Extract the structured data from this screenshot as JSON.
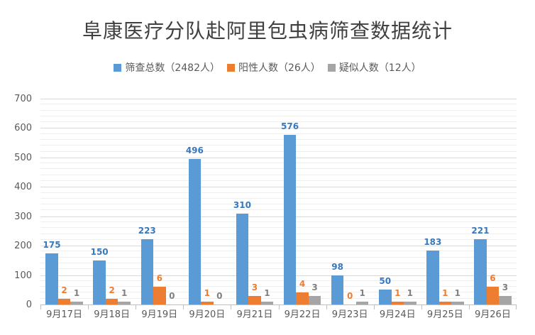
{
  "title": "阜康医疗分队赴阿里包虫病筛查数据统计",
  "colors": {
    "series_blue": "#5B9BD5",
    "series_orange": "#ED7D31",
    "series_gray": "#A5A5A5",
    "label_blue": "#3778BF",
    "label_orange": "#ED7D31",
    "label_gray": "#808080",
    "axis_text": "#595959",
    "title_text": "#404040",
    "grid_major": "#D9D9D9",
    "grid_minor": "#EFEFEF",
    "axis_line": "#BFBFBF"
  },
  "legend": [
    {
      "key": "screened_total",
      "label": "筛查总数（2482人）",
      "color": "#5B9BD5"
    },
    {
      "key": "positive",
      "label": "阳性人数（26人）",
      "color": "#ED7D31"
    },
    {
      "key": "suspected",
      "label": "疑似人数（12人）",
      "color": "#A5A5A5"
    }
  ],
  "chart_data": {
    "type": "bar",
    "title": "阜康医疗分队赴阿里包虫病筛查数据统计",
    "categories": [
      "9月17日",
      "9月18日",
      "9月19日",
      "9月20日",
      "9月21日",
      "9月22日",
      "9月23日",
      "9月24日",
      "9月25日",
      "9月26日"
    ],
    "series": [
      {
        "key": "screened_total",
        "name": "筛查总数（2482人）",
        "color": "#5B9BD5",
        "label_color": "#3778BF",
        "axis": "primary",
        "values": [
          175,
          150,
          223,
          496,
          310,
          576,
          98,
          50,
          183,
          221
        ]
      },
      {
        "key": "positive",
        "name": "阳性人数（26人）",
        "color": "#ED7D31",
        "label_color": "#ED7D31",
        "axis": "secondary",
        "values": [
          2,
          2,
          6,
          1,
          3,
          4,
          0,
          1,
          1,
          6
        ]
      },
      {
        "key": "suspected",
        "name": "疑似人数（12人）",
        "color": "#A5A5A5",
        "label_color": "#808080",
        "axis": "secondary",
        "values": [
          1,
          1,
          0,
          0,
          1,
          3,
          1,
          1,
          1,
          3
        ]
      }
    ],
    "xlabel": "",
    "ylabel": "",
    "ylim": [
      0,
      700
    ],
    "y_major_step": 100,
    "y_minor_step": 20,
    "y_tick_labels": [
      "0",
      "100",
      "200",
      "300",
      "400",
      "500",
      "600",
      "700"
    ],
    "secondary_axis_scale_vs_primary": 10,
    "grid": true,
    "legend_position": "top",
    "data_labels": true
  }
}
